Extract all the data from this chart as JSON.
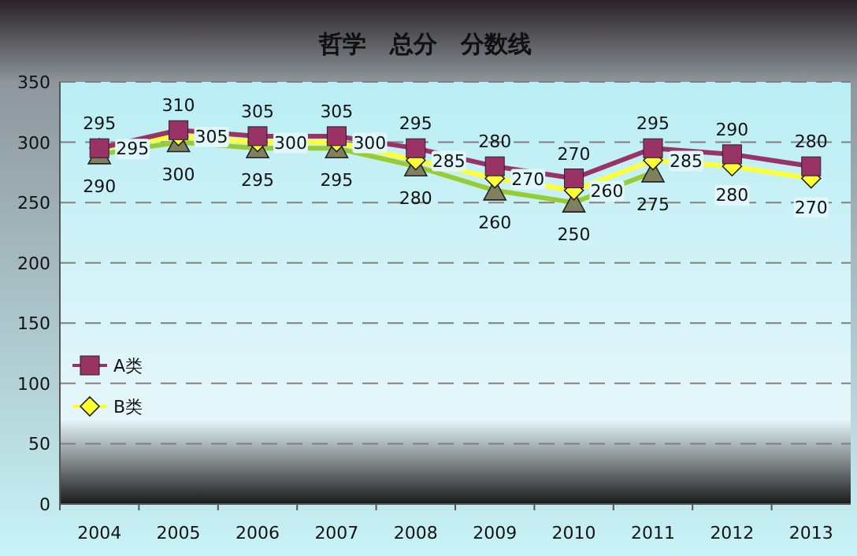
{
  "chart_data": {
    "type": "line",
    "title": "哲学　总分　分数线",
    "categories": [
      "2004",
      "2005",
      "2006",
      "2007",
      "2008",
      "2009",
      "2010",
      "2011",
      "2012",
      "2013"
    ],
    "series": [
      {
        "name": "A类",
        "color": "#993366",
        "marker": "square",
        "values": [
          295,
          310,
          305,
          305,
          295,
          280,
          270,
          295,
          290,
          280
        ]
      },
      {
        "name": "B类",
        "color": "#ffff33",
        "marker": "diamond",
        "values": [
          295,
          305,
          300,
          300,
          285,
          270,
          260,
          285,
          280,
          270
        ]
      },
      {
        "color": "#99cc33",
        "marker": "triangle",
        "values": [
          290,
          300,
          295,
          295,
          280,
          260,
          250,
          275,
          null,
          null
        ]
      }
    ],
    "ylim": [
      0,
      350
    ],
    "yticks": [
      0,
      50,
      100,
      150,
      200,
      250,
      300,
      350
    ],
    "grid": "y",
    "data_labels": true,
    "legend": "left"
  }
}
